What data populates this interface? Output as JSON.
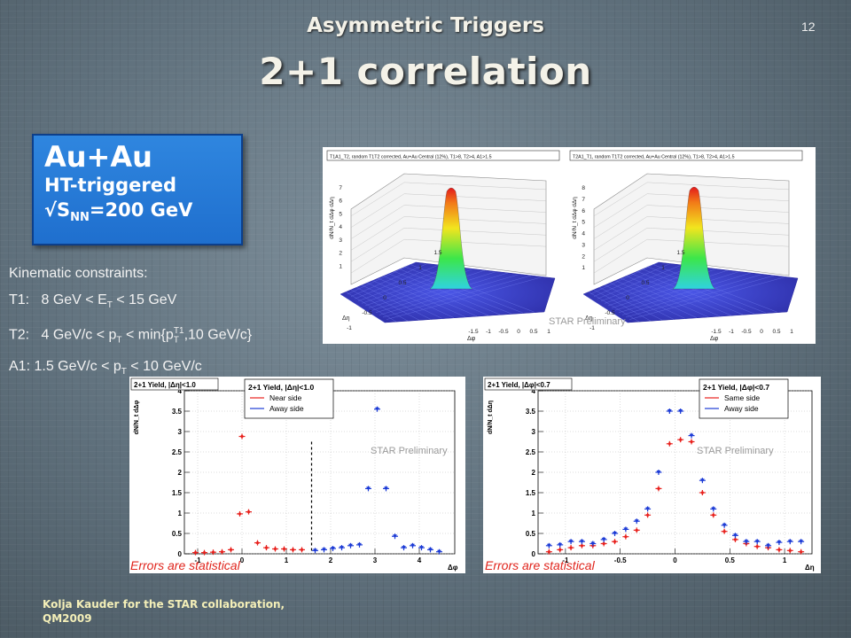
{
  "slide": {
    "title_line1": "Asymmetric Triggers",
    "title_line2": "2+1 correlation",
    "number": "12",
    "footer_line1": "Kolja Kauder for the STAR collaboration,",
    "footer_line2": "QM2009"
  },
  "box": {
    "system": "Au+Au",
    "trigger": "HT-triggered",
    "energy_prefix": "√S",
    "energy_sub": "NN",
    "energy_value": "=200 GeV"
  },
  "kinematics": {
    "heading": "Kinematic constraints:",
    "rows": [
      {
        "label": "T1:",
        "text": "8 GeV < E",
        "sub": "T",
        "rest": " < 15 GeV"
      },
      {
        "label": "T2:",
        "text": "4 GeV/c < p",
        "sub": "T",
        "rest": " < min{p",
        "sub2": "T",
        "sup2": "T1",
        "rest2": ",10 GeV/c}"
      },
      {
        "label": "A1:",
        "text": "1.5 GeV/c < p",
        "sub": "T",
        "rest": " < 10 GeV/c"
      }
    ]
  },
  "watermark": "STAR Preliminary",
  "errors_note": "Errors are statistical",
  "chart_data": [
    {
      "type": "surface",
      "title": "T1A1_T2, random T1T2 corrected, Au+Au Central (12%), T1>8, T2>4, A1>1.5",
      "zlabel": "dN/N_t dΔφ dΔη",
      "xlabel": "Δφ",
      "ylabel": "Δη",
      "zticks": [
        "1",
        "2",
        "3",
        "4",
        "5",
        "6",
        "7"
      ],
      "xticks": [
        "-1.5",
        "-1",
        "-0.5",
        "0",
        "0.5",
        "1"
      ],
      "yticks": [
        "-1",
        "-0.5",
        "0",
        "0.5",
        "1",
        "1.5"
      ],
      "peak": 7.0,
      "colors": {
        "base": "#3a3dc2",
        "peak": "#e31a1c"
      }
    },
    {
      "type": "surface",
      "title": "T2A1_T1, random T1T2 corrected, Au+Au Central (12%), T1>8, T2>4, A1>1.5",
      "zlabel": "dN/N_t dΔφ dΔη",
      "xlabel": "Δφ",
      "ylabel": "Δη",
      "zticks": [
        "1",
        "2",
        "3",
        "4",
        "5",
        "6",
        "7",
        "8"
      ],
      "xticks": [
        "-1.5",
        "-1",
        "-0.5",
        "0",
        "0.5",
        "1"
      ],
      "yticks": [
        "-1",
        "-0.5",
        "0",
        "0.5",
        "1",
        "1.5"
      ],
      "peak": 8.0,
      "colors": {
        "base": "#3a3dc2",
        "peak": "#e31a1c"
      }
    },
    {
      "type": "scatter",
      "title": "2+1 Yield, |Δη|<1.0",
      "legend_title": "2+1 Yield, |Δη|<1.0",
      "xlabel": "Δφ",
      "ylabel": "dN/N_t dΔφ",
      "xlim": [
        -1.3,
        4.8
      ],
      "ylim": [
        0,
        4
      ],
      "xticks": [
        -1,
        0,
        1,
        2,
        3,
        4
      ],
      "yticks": [
        0,
        0.5,
        1,
        1.5,
        2,
        2.5,
        3,
        3.5,
        4
      ],
      "divider_x": 1.57,
      "series": [
        {
          "name": "Near side",
          "color": "#e8221e",
          "x": [
            -1.05,
            -0.85,
            -0.65,
            -0.45,
            -0.25,
            -0.05,
            0.15,
            0.35,
            0.55,
            0.75,
            0.95,
            1.15,
            1.35
          ],
          "y": [
            0.03,
            0.03,
            0.04,
            0.05,
            0.1,
            0.98,
            1.03,
            0.27,
            0.15,
            0.12,
            0.12,
            0.1,
            0.1
          ]
        },
        {
          "name": "Near side",
          "color": "#e8221e",
          "x": [
            0.0
          ],
          "y": [
            2.88
          ]
        },
        {
          "name": "Away side",
          "color": "#1c3bd6",
          "x": [
            1.65,
            1.85,
            2.05,
            2.25,
            2.45,
            2.65,
            2.85,
            3.05,
            3.25,
            3.45,
            3.65,
            3.85,
            4.05,
            4.25,
            4.45
          ],
          "y": [
            0.08,
            0.1,
            0.13,
            0.15,
            0.2,
            0.22,
            1.6,
            3.55,
            1.6,
            0.43,
            0.15,
            0.2,
            0.15,
            0.1,
            0.05
          ]
        }
      ]
    },
    {
      "type": "scatter",
      "title": "2+1 Yield, |Δφ|<0.7",
      "legend_title": "2+1 Yield, |Δφ|<0.7",
      "xlabel": "Δη",
      "ylabel": "dN/N_t dΔη",
      "xlim": [
        -1.25,
        1.25
      ],
      "ylim": [
        0,
        4
      ],
      "xticks": [
        -1,
        -0.5,
        0,
        0.5,
        1
      ],
      "yticks": [
        0,
        0.5,
        1,
        1.5,
        2,
        2.5,
        3,
        3.5,
        4
      ],
      "xtick_labels": [
        "-1",
        "-0.5",
        "0",
        "0.5",
        "1"
      ],
      "series": [
        {
          "name": "Same side",
          "color": "#e8221e",
          "x": [
            -1.15,
            -1.05,
            -0.95,
            -0.85,
            -0.75,
            -0.65,
            -0.55,
            -0.45,
            -0.35,
            -0.25,
            -0.15,
            -0.05,
            0.05,
            0.15,
            0.25,
            0.35,
            0.45,
            0.55,
            0.65,
            0.75,
            0.85,
            0.95,
            1.05,
            1.15
          ],
          "y": [
            0.05,
            0.1,
            0.15,
            0.2,
            0.2,
            0.25,
            0.3,
            0.42,
            0.58,
            0.95,
            1.6,
            2.7,
            2.8,
            2.75,
            1.5,
            0.95,
            0.55,
            0.35,
            0.25,
            0.18,
            0.15,
            0.1,
            0.08,
            0.05
          ]
        },
        {
          "name": "Away side",
          "color": "#1c3bd6",
          "x": [
            -1.15,
            -1.05,
            -0.95,
            -0.85,
            -0.75,
            -0.65,
            -0.55,
            -0.45,
            -0.35,
            -0.25,
            -0.15,
            -0.05,
            0.05,
            0.15,
            0.25,
            0.35,
            0.45,
            0.55,
            0.65,
            0.75,
            0.85,
            0.95,
            1.05,
            1.15
          ],
          "y": [
            0.2,
            0.22,
            0.3,
            0.3,
            0.25,
            0.35,
            0.5,
            0.6,
            0.8,
            1.1,
            2.0,
            3.5,
            3.5,
            2.9,
            1.8,
            1.1,
            0.7,
            0.45,
            0.3,
            0.3,
            0.2,
            0.28,
            0.3,
            0.3
          ]
        }
      ],
      "legend_labels": [
        "Same side",
        "Away side"
      ]
    }
  ]
}
